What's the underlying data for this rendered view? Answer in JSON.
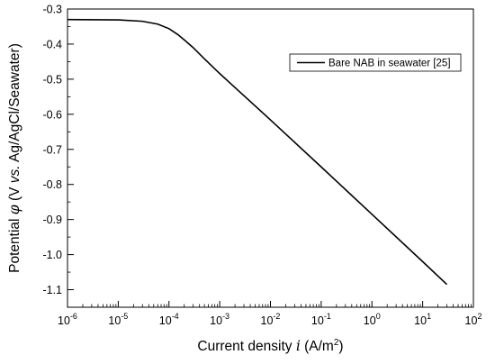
{
  "chart_data": {
    "type": "line",
    "xlabel": {
      "prefix": "Current density ",
      "italic": "i",
      "suffix": " (A/m",
      "sup": "2",
      "close": ")"
    },
    "ylabel": {
      "prefix": "Potential ",
      "symbol": "φ",
      "middle": " (V ",
      "vs": "vs.",
      "suffix": " Ag/AgCl/Seawater)"
    },
    "x_scale": "log",
    "x_range": [
      1e-06,
      100
    ],
    "x_ticks": [
      {
        "value": 1e-06,
        "base": "10",
        "exp": "-6"
      },
      {
        "value": 1e-05,
        "base": "10",
        "exp": "-5"
      },
      {
        "value": 0.0001,
        "base": "10",
        "exp": "-4"
      },
      {
        "value": 0.001,
        "base": "10",
        "exp": "-3"
      },
      {
        "value": 0.01,
        "base": "10",
        "exp": "-2"
      },
      {
        "value": 0.1,
        "base": "10",
        "exp": "-1"
      },
      {
        "value": 1,
        "base": "10",
        "exp": "0"
      },
      {
        "value": 10,
        "base": "10",
        "exp": "1"
      },
      {
        "value": 100,
        "base": "10",
        "exp": "2"
      }
    ],
    "y_range": [
      -1.15,
      -0.3
    ],
    "y_ticks": [
      "-0.3",
      "-0.4",
      "-0.5",
      "-0.6",
      "-0.7",
      "-0.8",
      "-0.9",
      "-1.0",
      "-1.1"
    ],
    "grid": false,
    "legend_position": "top-right",
    "series": [
      {
        "name": "Bare NAB in seawater [25]",
        "color": "#000000",
        "points": [
          [
            1e-06,
            -0.33
          ],
          [
            1e-05,
            -0.331
          ],
          [
            3e-05,
            -0.335
          ],
          [
            6e-05,
            -0.343
          ],
          [
            0.0001,
            -0.356
          ],
          [
            0.00015,
            -0.373
          ],
          [
            0.0002,
            -0.388
          ],
          [
            0.0003,
            -0.41
          ],
          [
            0.0005,
            -0.442
          ],
          [
            0.001,
            -0.484
          ],
          [
            0.01,
            -0.616
          ],
          [
            0.1,
            -0.75
          ],
          [
            1,
            -0.885
          ],
          [
            10,
            -1.02
          ],
          [
            30,
            -1.085
          ]
        ]
      }
    ]
  }
}
